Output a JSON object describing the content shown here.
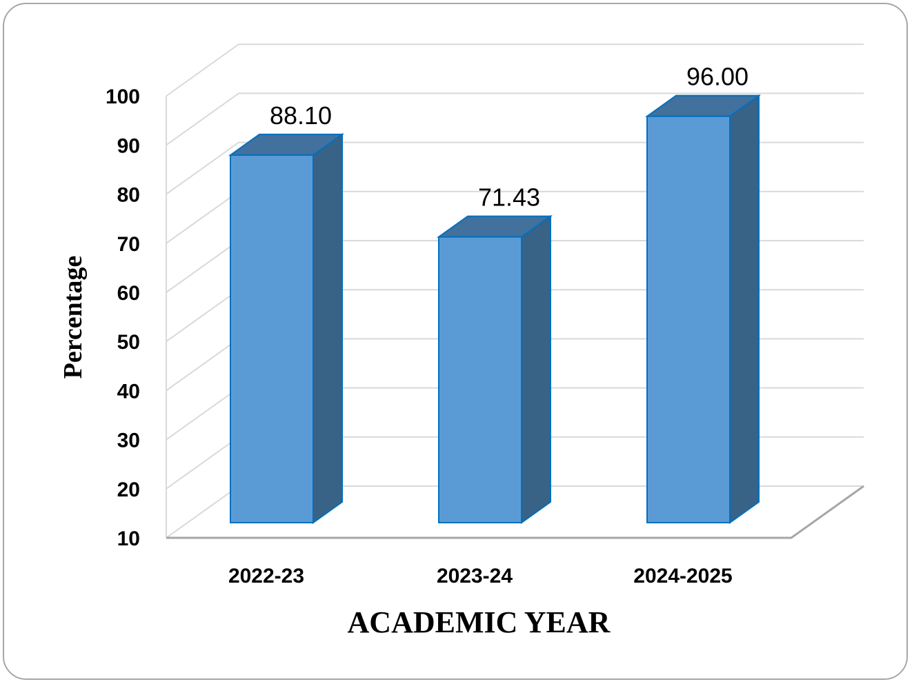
{
  "chart_data": {
    "type": "bar",
    "style": "3d-column",
    "categories": [
      "2022-23",
      "2023-24",
      "2024-2025"
    ],
    "values": [
      88.1,
      71.43,
      96.0
    ],
    "data_labels": [
      "88.10",
      "71.43",
      "96.00"
    ],
    "xlabel": "ACADEMIC YEAR",
    "ylabel": "Percentage",
    "ylim": [
      10,
      100
    ],
    "y_ticks": [
      "10",
      "20",
      "30",
      "40",
      "50",
      "60",
      "70",
      "80",
      "90",
      "100"
    ],
    "grid": true,
    "legend": "none",
    "colors": {
      "bar_front": "#5b9bd5",
      "bar_top": "#41719c",
      "bar_side": "#386286",
      "bar_outline": "#0070c0",
      "gridline": "#d9d9d9",
      "axis": "#a6a6a6"
    }
  }
}
